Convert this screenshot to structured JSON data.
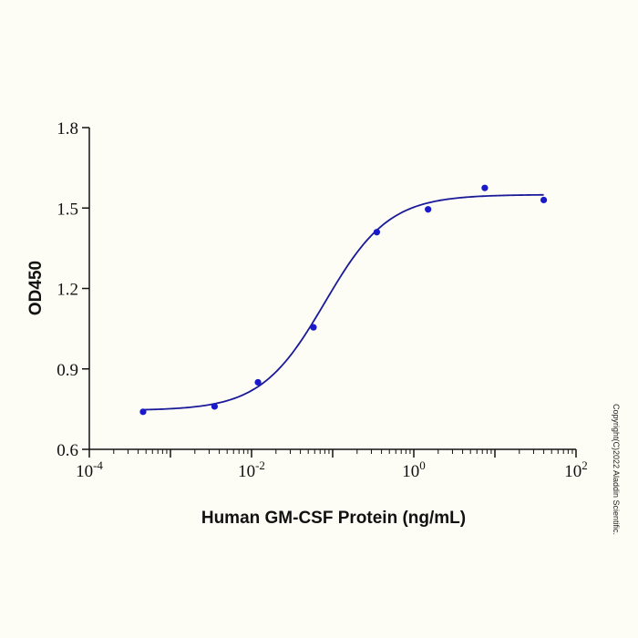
{
  "chart_data": {
    "type": "scatter",
    "xlabel": "Human GM-CSF Protein (ng/mL)",
    "ylabel": "OD450",
    "x_scale": "log",
    "xlim": [
      0.0001,
      100
    ],
    "ylim": [
      0.6,
      1.8
    ],
    "x_ticks": [
      {
        "value": 0.0001,
        "base": "10",
        "exp": "-4"
      },
      {
        "value": 0.01,
        "base": "10",
        "exp": "-2"
      },
      {
        "value": 1,
        "base": "10",
        "exp": "0"
      },
      {
        "value": 100,
        "base": "10",
        "exp": "2"
      }
    ],
    "y_ticks": [
      "0.6",
      "0.9",
      "1.2",
      "1.5",
      "1.8"
    ],
    "grid": false,
    "series": [
      {
        "color": "#1a1acc",
        "points": [
          {
            "x": 0.00046,
            "y": 0.74
          },
          {
            "x": 0.0035,
            "y": 0.76
          },
          {
            "x": 0.012,
            "y": 0.85
          },
          {
            "x": 0.058,
            "y": 1.055
          },
          {
            "x": 0.35,
            "y": 1.41
          },
          {
            "x": 1.5,
            "y": 1.495
          },
          {
            "x": 7.5,
            "y": 1.575
          },
          {
            "x": 40,
            "y": 1.53
          }
        ]
      }
    ],
    "fit_curve": {
      "color": "#1a1a99",
      "model": "4PL",
      "bottom": 0.745,
      "top": 1.55,
      "ec50": 0.08,
      "hill": 1.1
    }
  },
  "copyright": "Copyright(C)2022 Aladdin Scientific."
}
